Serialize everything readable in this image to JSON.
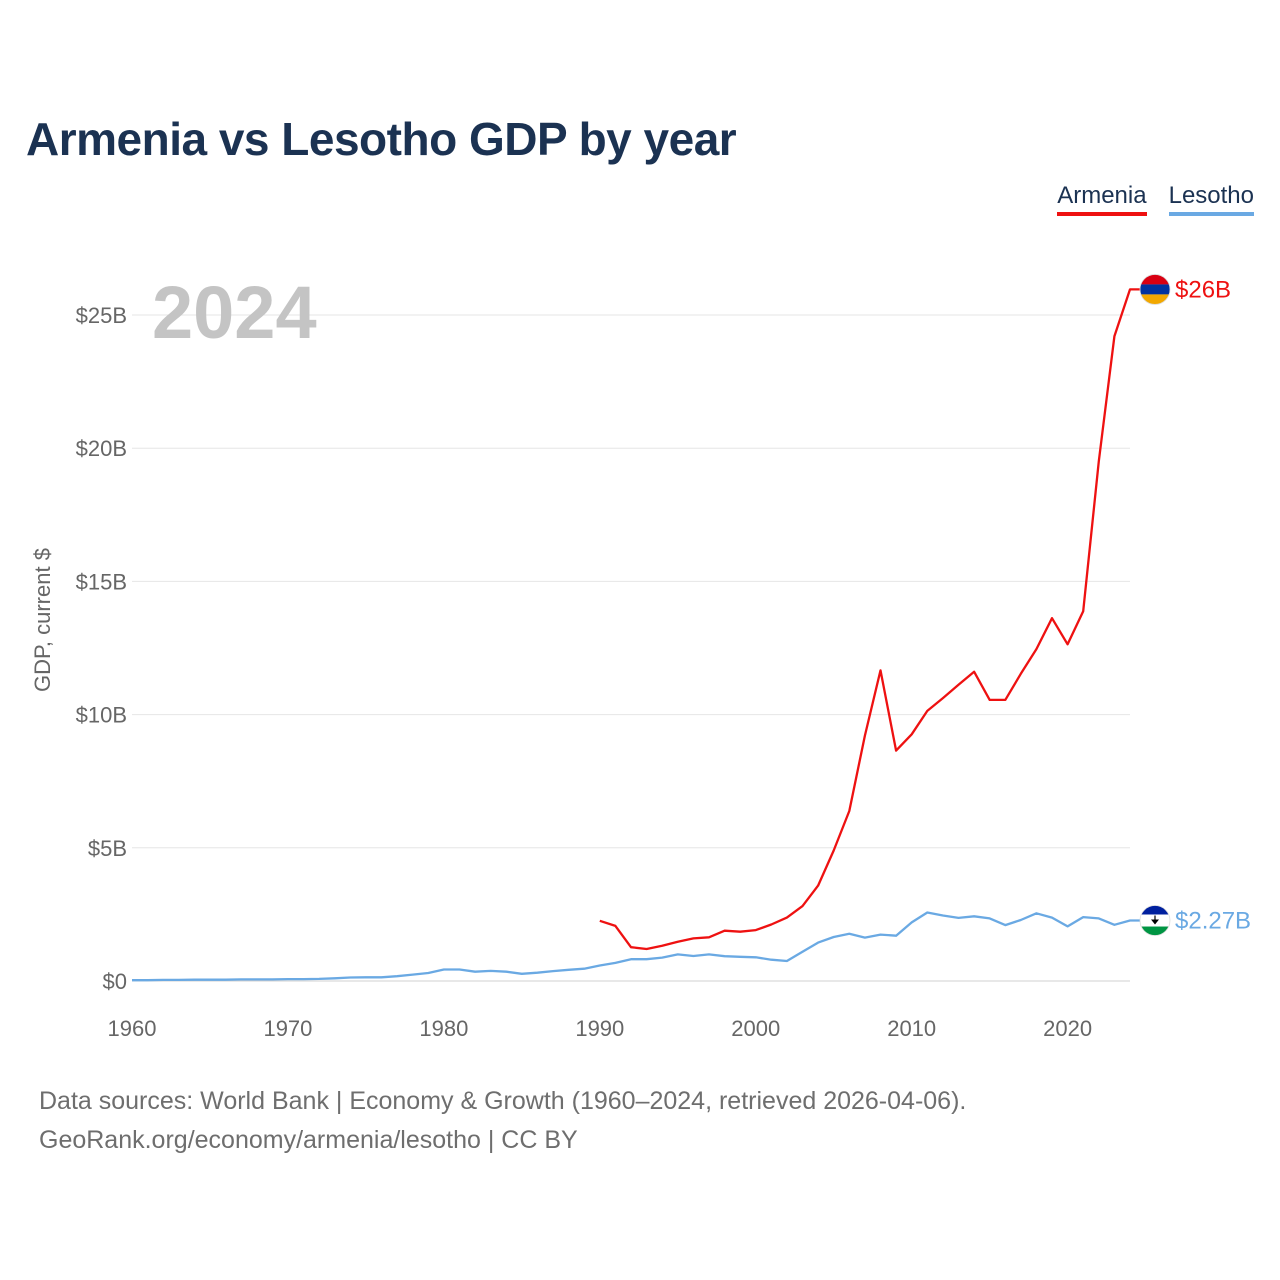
{
  "title": "Armenia vs Lesotho GDP by year",
  "year_watermark": "2024",
  "legend": [
    {
      "label": "Armenia",
      "color": "#ee1111"
    },
    {
      "label": "Lesotho",
      "color": "#6aa9e3"
    }
  ],
  "footer": {
    "line1": "Data sources: World Bank | Economy & Growth (1960–2024, retrieved 2026-04-06).",
    "line2": "GeoRank.org/economy/armenia/lesotho | CC BY"
  },
  "chart_data": {
    "type": "line",
    "title": "Armenia vs Lesotho GDP by year",
    "xlabel": "",
    "ylabel": "GDP, current $",
    "xlim": [
      1960,
      2024
    ],
    "ylim": [
      0,
      26
    ],
    "x_ticks": [
      1960,
      1970,
      1980,
      1990,
      2000,
      2010,
      2020
    ],
    "x_tick_labels": [
      "1960",
      "1970",
      "1980",
      "1990",
      "2000",
      "2010",
      "2020"
    ],
    "y_ticks": [
      0,
      5,
      10,
      15,
      20,
      25
    ],
    "y_tick_labels": [
      "$0",
      "$5B",
      "$10B",
      "$15B",
      "$20B",
      "$25B"
    ],
    "grid": true,
    "series": [
      {
        "name": "Armenia",
        "color": "#ee1111",
        "end_label": "$26B",
        "x": [
          1990,
          1991,
          1992,
          1993,
          1994,
          1995,
          1996,
          1997,
          1998,
          1999,
          2000,
          2001,
          2002,
          2003,
          2004,
          2005,
          2006,
          2007,
          2008,
          2009,
          2010,
          2011,
          2012,
          2013,
          2014,
          2015,
          2016,
          2017,
          2018,
          2019,
          2020,
          2021,
          2022,
          2023,
          2024
        ],
        "values": [
          2.26,
          2.07,
          1.27,
          1.2,
          1.32,
          1.47,
          1.6,
          1.64,
          1.89,
          1.85,
          1.91,
          2.12,
          2.38,
          2.81,
          3.58,
          4.9,
          6.38,
          9.21,
          11.66,
          8.65,
          9.26,
          10.14,
          10.62,
          11.12,
          11.61,
          10.55,
          10.55,
          11.53,
          12.46,
          13.62,
          12.64,
          13.88,
          19.51,
          24.2,
          25.96
        ]
      },
      {
        "name": "Lesotho",
        "color": "#6aa9e3",
        "end_label": "$2.27B",
        "x": [
          1960,
          1961,
          1962,
          1963,
          1964,
          1965,
          1966,
          1967,
          1968,
          1969,
          1970,
          1971,
          1972,
          1973,
          1974,
          1975,
          1976,
          1977,
          1978,
          1979,
          1980,
          1981,
          1982,
          1983,
          1984,
          1985,
          1986,
          1987,
          1988,
          1989,
          1990,
          1991,
          1992,
          1993,
          1994,
          1995,
          1996,
          1997,
          1998,
          1999,
          2000,
          2001,
          2002,
          2003,
          2004,
          2005,
          2006,
          2007,
          2008,
          2009,
          2010,
          2011,
          2012,
          2013,
          2014,
          2015,
          2016,
          2017,
          2018,
          2019,
          2020,
          2021,
          2022,
          2023,
          2024
        ],
        "values": [
          0.03,
          0.03,
          0.04,
          0.04,
          0.05,
          0.05,
          0.05,
          0.06,
          0.06,
          0.06,
          0.07,
          0.07,
          0.08,
          0.1,
          0.13,
          0.14,
          0.14,
          0.18,
          0.24,
          0.3,
          0.43,
          0.43,
          0.35,
          0.38,
          0.35,
          0.27,
          0.31,
          0.37,
          0.42,
          0.46,
          0.58,
          0.68,
          0.82,
          0.82,
          0.88,
          1.0,
          0.94,
          1.0,
          0.93,
          0.91,
          0.89,
          0.8,
          0.75,
          1.1,
          1.44,
          1.65,
          1.77,
          1.63,
          1.74,
          1.7,
          2.2,
          2.57,
          2.46,
          2.37,
          2.43,
          2.35,
          2.1,
          2.29,
          2.54,
          2.38,
          2.05,
          2.4,
          2.35,
          2.11,
          2.27
        ]
      }
    ]
  }
}
